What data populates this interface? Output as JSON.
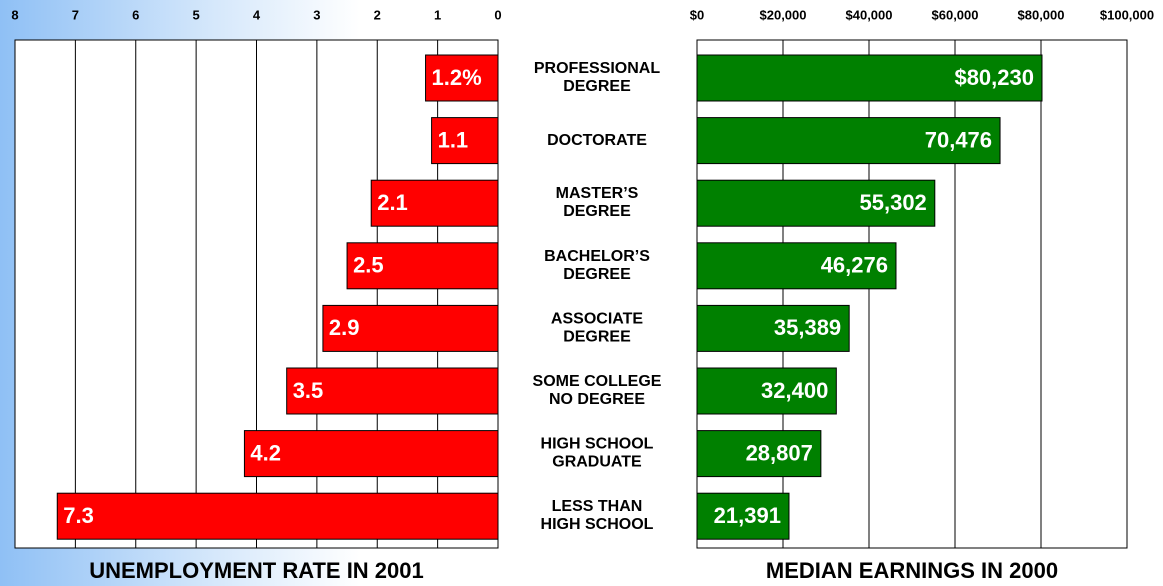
{
  "chart_data": [
    {
      "type": "bar",
      "orientation": "horizontal",
      "x_inverted": true,
      "title": "UNEMPLOYMENT RATE IN 2001",
      "categories": [
        "PROFESSIONAL\nDEGREE",
        "DOCTORATE",
        "MASTER’S\nDEGREE",
        "BACHELOR’S\nDEGREE",
        "ASSOCIATE\nDEGREE",
        "SOME COLLEGE\nNO DEGREE",
        "HIGH SCHOOL\nGRADUATE",
        "LESS THAN\nHIGH SCHOOL"
      ],
      "values": [
        1.2,
        1.1,
        2.1,
        2.5,
        2.9,
        3.5,
        4.2,
        7.3
      ],
      "value_labels": [
        "1.2%",
        "1.1",
        "2.1",
        "2.5",
        "2.9",
        "3.5",
        "4.2",
        "7.3"
      ],
      "color": "#ff0000",
      "xlim": [
        0,
        8
      ],
      "xticks": [
        0,
        1,
        2,
        3,
        4,
        5,
        6,
        7,
        8
      ],
      "grid": true
    },
    {
      "type": "bar",
      "orientation": "horizontal",
      "x_inverted": false,
      "title": "MEDIAN EARNINGS IN 2000",
      "values": [
        80230,
        70476,
        55302,
        46276,
        35389,
        32400,
        28807,
        21391
      ],
      "value_labels": [
        "$80,230",
        "70,476",
        "55,302",
        "46,276",
        "35,389",
        "32,400",
        "28,807",
        "21,391"
      ],
      "color": "#008000",
      "xlim": [
        0,
        100000
      ],
      "xticks": [
        {
          "value": 0,
          "label": "$0"
        },
        {
          "value": 20000,
          "label": "$20,000"
        },
        {
          "value": 40000,
          "label": "$40,000"
        },
        {
          "value": 60000,
          "label": "$60,000"
        },
        {
          "value": 80000,
          "label": "$80,000"
        },
        {
          "value": 100000,
          "label": "$100,000"
        }
      ],
      "grid": true
    }
  ]
}
